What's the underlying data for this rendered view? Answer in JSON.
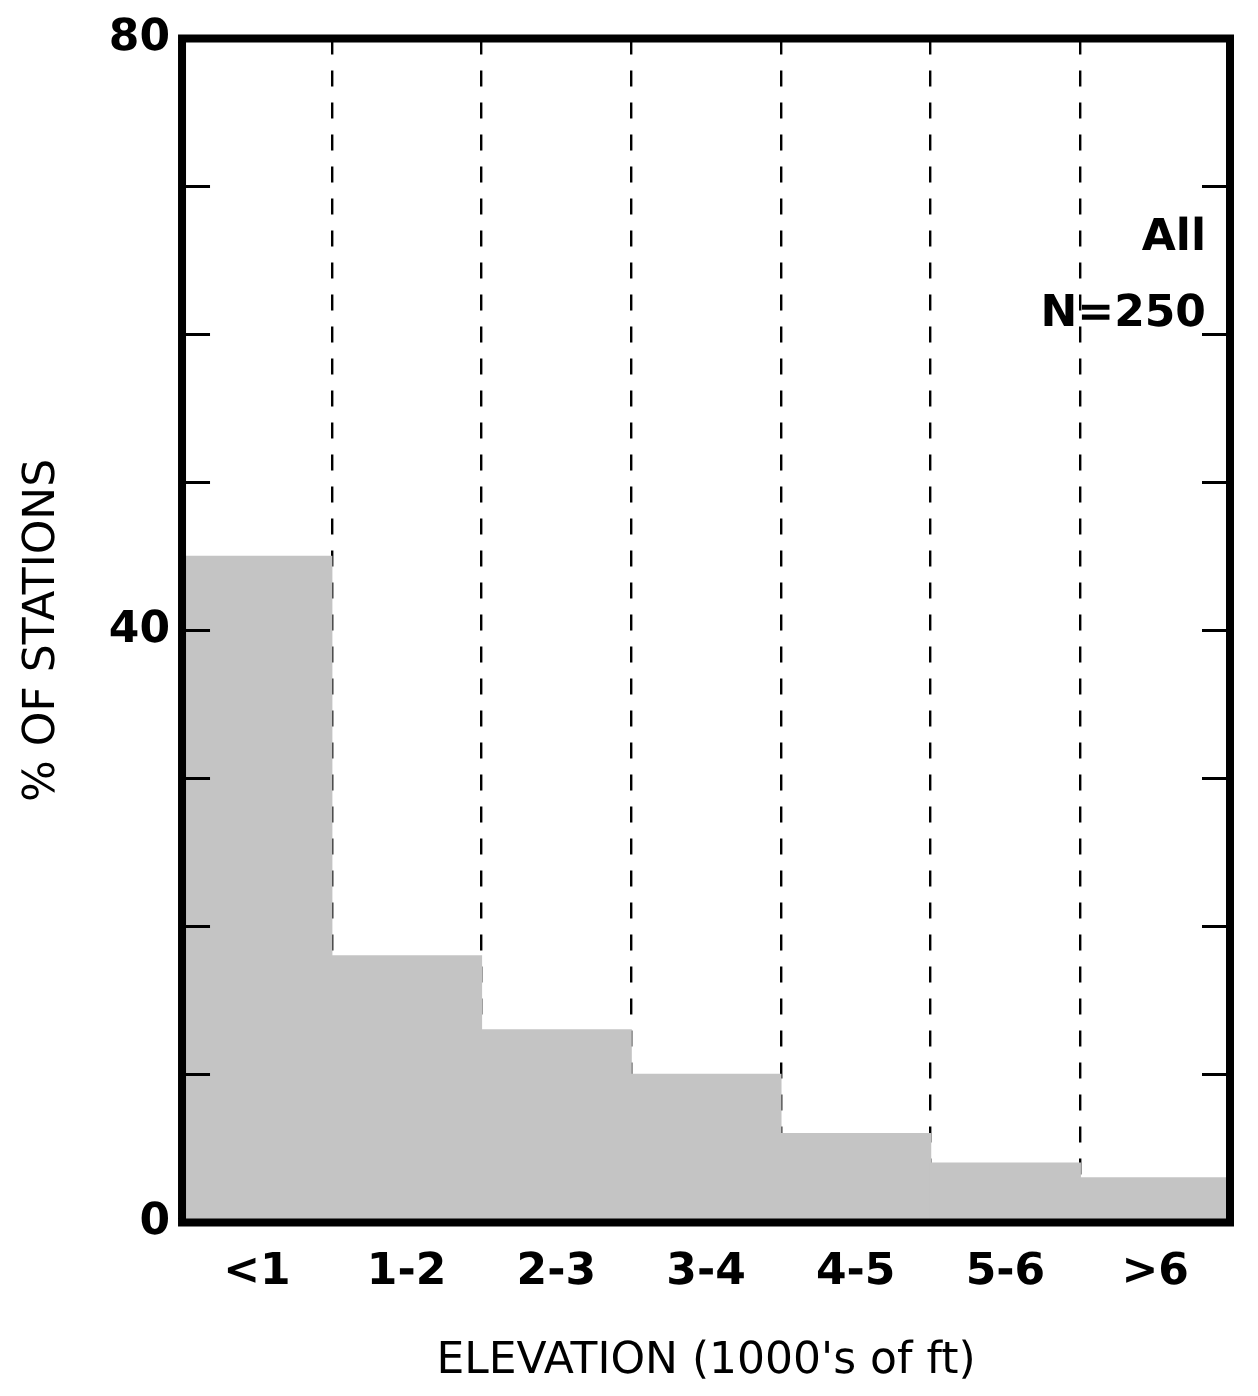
{
  "chart_data": {
    "type": "bar",
    "xlabel": "ELEVATION (1000's of ft)",
    "ylabel": "% OF STATIONS",
    "categories": [
      "<1",
      "1-2",
      "2-3",
      "3-4",
      "4-5",
      "5-6",
      ">6"
    ],
    "values": [
      45,
      18,
      13,
      10,
      6,
      4,
      3
    ],
    "color": "#c4c4c4",
    "ylim": [
      0,
      80
    ],
    "yticks": [
      0,
      {
        "value": 10,
        "label": null
      },
      {
        "value": 20,
        "label": null
      },
      {
        "value": 30,
        "label": null
      },
      40,
      {
        "value": 50,
        "label": null
      },
      {
        "value": 60,
        "label": null
      },
      {
        "value": 70,
        "label": null
      },
      80
    ],
    "grid": "x",
    "line_style": "dashed",
    "annotations": [
      "All",
      "N=250"
    ]
  }
}
